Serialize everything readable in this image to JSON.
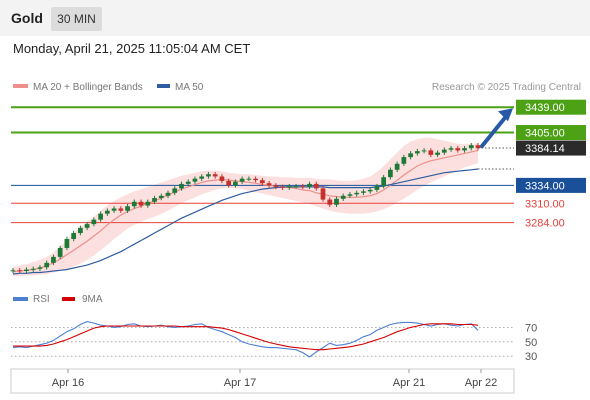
{
  "header": {
    "title": "Gold",
    "timeframe": "30 MIN"
  },
  "date_line": "Monday, April 21, 2025 11:05:04 AM CET",
  "legend": {
    "bollinger": "MA 20 + Bollinger Bands",
    "ma50": "MA 50",
    "rsi": "RSI",
    "ma9": "9MA"
  },
  "copyright": "Research © 2025 Trading Central",
  "colors": {
    "resistance": "#4ca214",
    "support": "#e8413a",
    "pivot": "#1a4f9a",
    "candle_up": "#1d7a36",
    "candle_down": "#c6312b",
    "band": "#f9c7c4",
    "ma20": "#ee8f8b",
    "ma50": "#2f5d9f",
    "rsi": "#4f7fd1",
    "rsi_ma": "#d60000",
    "arrow": "#2859a6"
  },
  "chart_data": [
    {
      "type": "line",
      "title": "Gold",
      "timeframe": "30 MIN",
      "y_axis": {
        "min": 3215,
        "max": 3446
      },
      "x_ticks": [
        "Apr 16",
        "Apr 17",
        "Apr 21",
        "Apr 22"
      ],
      "levels": [
        {
          "value": 3439.0,
          "label": "3439.00",
          "kind": "resistance"
        },
        {
          "value": 3405.0,
          "label": "3405.00",
          "kind": "resistance"
        },
        {
          "value": 3384.14,
          "label": "3384.14",
          "kind": "last"
        },
        {
          "value": 3334.0,
          "label": "3334.00",
          "kind": "pivot"
        },
        {
          "value": 3310.0,
          "label": "3310.00",
          "kind": "support"
        },
        {
          "value": 3284.0,
          "label": "3284.00",
          "kind": "support"
        }
      ],
      "price": [
        3220,
        3219,
        3221,
        3222,
        3224,
        3230,
        3238,
        3250,
        3262,
        3270,
        3277,
        3282,
        3288,
        3296,
        3300,
        3303,
        3300,
        3306,
        3312,
        3307,
        3312,
        3317,
        3320,
        3324,
        3330,
        3336,
        3339,
        3343,
        3346,
        3349,
        3346,
        3340,
        3334,
        3339,
        3343,
        3343,
        3341,
        3337,
        3334,
        3332,
        3331,
        3333,
        3333,
        3332,
        3336,
        3330,
        3315,
        3308,
        3316,
        3320,
        3322,
        3324,
        3326,
        3328,
        3333,
        3345,
        3355,
        3363,
        3372,
        3377,
        3380,
        3381,
        3375,
        3378,
        3382,
        3384,
        3381,
        3384,
        3388,
        3384
      ],
      "ma20": [
        3218,
        3219,
        3220,
        3221,
        3223,
        3226,
        3230,
        3235,
        3241,
        3247,
        3253,
        3259,
        3266,
        3273,
        3281,
        3288,
        3294,
        3299,
        3303,
        3306,
        3310,
        3313,
        3317,
        3321,
        3325,
        3329,
        3332,
        3335,
        3338,
        3340,
        3341,
        3342,
        3341,
        3340,
        3339,
        3338,
        3337,
        3335,
        3334,
        3333,
        3332,
        3331,
        3330,
        3328,
        3327,
        3324,
        3322,
        3320,
        3319,
        3318,
        3318,
        3318,
        3319,
        3320,
        3323,
        3328,
        3334,
        3341,
        3348,
        3354,
        3360,
        3364,
        3367,
        3369,
        3371,
        3373,
        3375,
        3377,
        3379,
        3381
      ],
      "bb_upper": [
        3225,
        3226,
        3228,
        3231,
        3234,
        3238,
        3244,
        3252,
        3261,
        3270,
        3278,
        3285,
        3292,
        3300,
        3307,
        3313,
        3318,
        3322,
        3326,
        3329,
        3332,
        3335,
        3338,
        3341,
        3344,
        3347,
        3349,
        3351,
        3353,
        3354,
        3354,
        3353,
        3351,
        3350,
        3349,
        3349,
        3348,
        3347,
        3346,
        3346,
        3345,
        3345,
        3344,
        3344,
        3344,
        3343,
        3342,
        3342,
        3341,
        3340,
        3340,
        3341,
        3343,
        3346,
        3352,
        3360,
        3369,
        3378,
        3387,
        3393,
        3396,
        3398,
        3398,
        3396,
        3394,
        3392,
        3390,
        3389,
        3390,
        3391
      ],
      "bb_lower": [
        3212,
        3212,
        3213,
        3213,
        3214,
        3215,
        3217,
        3219,
        3222,
        3225,
        3229,
        3234,
        3240,
        3247,
        3254,
        3262,
        3269,
        3276,
        3281,
        3285,
        3289,
        3292,
        3296,
        3300,
        3305,
        3310,
        3314,
        3318,
        3322,
        3325,
        3328,
        3330,
        3331,
        3330,
        3329,
        3327,
        3325,
        3323,
        3321,
        3319,
        3317,
        3315,
        3313,
        3311,
        3309,
        3306,
        3303,
        3300,
        3298,
        3297,
        3296,
        3296,
        3296,
        3297,
        3299,
        3302,
        3306,
        3311,
        3316,
        3322,
        3328,
        3333,
        3338,
        3342,
        3346,
        3350,
        3354,
        3358,
        3361,
        3364
      ],
      "ma50": [
        3215,
        3216,
        3216,
        3217,
        3217,
        3218,
        3219,
        3220,
        3221,
        3223,
        3225,
        3227,
        3230,
        3233,
        3237,
        3241,
        3245,
        3250,
        3255,
        3260,
        3265,
        3270,
        3275,
        3280,
        3285,
        3290,
        3294,
        3298,
        3302,
        3306,
        3310,
        3314,
        3317,
        3320,
        3323,
        3325,
        3327,
        3329,
        3330,
        3331,
        3332,
        3332,
        3332,
        3332,
        3332,
        3332,
        3332,
        3331,
        3331,
        3331,
        3331,
        3331,
        3331,
        3331,
        3332,
        3333,
        3335,
        3337,
        3339,
        3341,
        3343,
        3345,
        3347,
        3349,
        3351,
        3352,
        3353,
        3354,
        3355,
        3356
      ]
    },
    {
      "type": "line",
      "title": "RSI",
      "y_axis": {
        "min": 15,
        "max": 90
      },
      "y_ticks": [
        70,
        50,
        30
      ],
      "series": [
        {
          "name": "RSI",
          "values": [
            42,
            43,
            42,
            44,
            46,
            48,
            52,
            58,
            64,
            68,
            74,
            78,
            76,
            73,
            72,
            70,
            71,
            74,
            75,
            72,
            71,
            72,
            73,
            71,
            70,
            71,
            72,
            74,
            75,
            70,
            67,
            64,
            60,
            56,
            50,
            47,
            45,
            43,
            42,
            42,
            41,
            40,
            39,
            35,
            29,
            36,
            42,
            48,
            45,
            46,
            48,
            52,
            57,
            60,
            66,
            70,
            74,
            76,
            77,
            77,
            76,
            74,
            72,
            74,
            75,
            73,
            72,
            74,
            75,
            66
          ]
        },
        {
          "name": "9MA",
          "values": [
            44,
            44,
            44,
            44,
            44,
            45,
            47,
            50,
            53,
            57,
            61,
            65,
            69,
            71,
            72,
            72,
            72,
            72,
            72,
            72,
            72,
            72,
            72,
            72,
            72,
            71,
            71,
            71,
            71,
            71,
            70,
            69,
            67,
            64,
            61,
            58,
            55,
            52,
            49,
            47,
            45,
            43,
            42,
            41,
            40,
            39,
            39,
            40,
            41,
            42,
            43,
            45,
            47,
            50,
            53,
            56,
            60,
            64,
            67,
            70,
            72,
            74,
            75,
            75,
            75,
            75,
            74,
            74,
            74,
            73
          ]
        }
      ]
    }
  ]
}
